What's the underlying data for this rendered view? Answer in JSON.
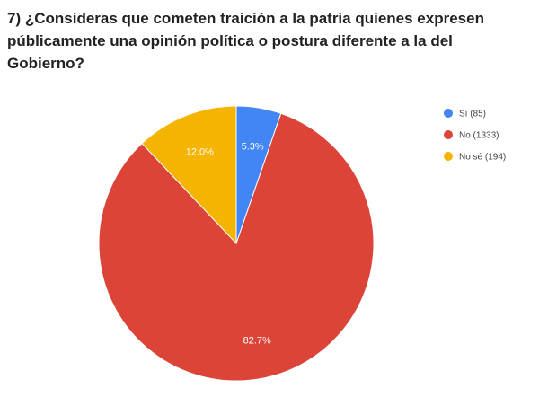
{
  "chart_data": {
    "type": "pie",
    "title": "7) ¿Consideras que cometen traición a la patria quienes expresen públicamente una opinión política o postura diferente a la del Gobierno?",
    "slices": [
      {
        "name": "Sí",
        "count": 85,
        "legend": "Sí (85)",
        "percent": 5.3,
        "label": "5.3%",
        "color": "#4285f4"
      },
      {
        "name": "No",
        "count": 1333,
        "legend": "No (1333)",
        "percent": 82.7,
        "label": "82.7%",
        "color": "#db4437"
      },
      {
        "name": "No sé",
        "count": 194,
        "legend": "No sé (194)",
        "percent": 12.0,
        "label": "12.0%",
        "color": "#f4b400"
      }
    ],
    "legend_position": "right"
  }
}
